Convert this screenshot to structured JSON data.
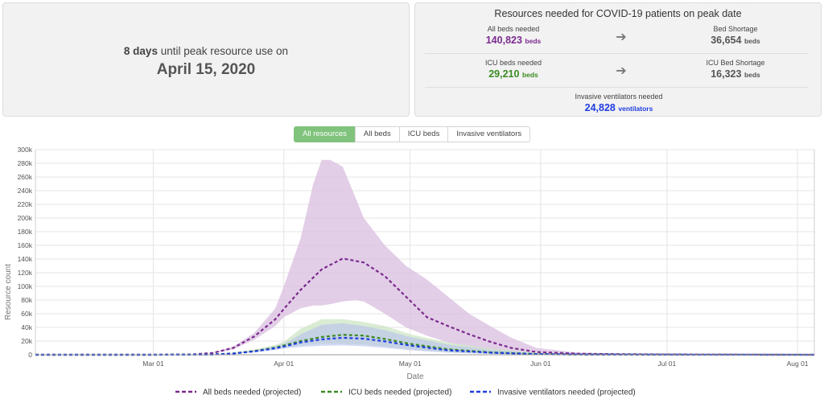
{
  "peak": {
    "days": "8 days",
    "until_text": " until peak resource use on",
    "date": "April 15, 2020"
  },
  "resources": {
    "title": "Resources needed for COVID-19 patients on peak date",
    "all_beds_label": "All beds needed",
    "all_beds_value": "140,823",
    "beds_unit": "beds",
    "bed_shortage_label": "Bed Shortage",
    "bed_shortage_value": "36,654",
    "icu_beds_label": "ICU beds needed",
    "icu_beds_value": "29,210",
    "icu_shortage_label": "ICU Bed Shortage",
    "icu_shortage_value": "16,323",
    "ventilators_label": "Invasive ventilators needed",
    "ventilators_value": "24,828",
    "ventilators_unit": "ventilators",
    "arrow_icon": "arrow-right-icon"
  },
  "filters": [
    "All resources",
    "All beds",
    "ICU beds",
    "Invasive ventilators"
  ],
  "active_filter": "All resources",
  "colors": {
    "all_beds": "#7b2a8e",
    "icu_beds": "#3b8a22",
    "ventilators": "#1f3de0",
    "all_beds_band": "#d9bde0",
    "icu_band": "#cfe6c5",
    "vent_band": "#b6c1ec",
    "active_filter": "#7fc37c"
  },
  "chart_data": {
    "type": "line",
    "xlabel": "Date",
    "ylabel": "Resource count",
    "x_ticks": [
      "Mar 01",
      "Apr 01",
      "May 01",
      "Jun 01",
      "Jul 01",
      "Aug 01"
    ],
    "y_ticks": [
      "0",
      "20k",
      "40k",
      "60k",
      "80k",
      "100k",
      "120k",
      "140k",
      "160k",
      "180k",
      "200k",
      "220k",
      "240k",
      "260k",
      "280k",
      "300k"
    ],
    "ylim": [
      0,
      300000
    ],
    "xlim": [
      "2020-02-02",
      "2020-08-05"
    ],
    "grid": true,
    "legend_position": "bottom",
    "series": [
      {
        "name": "All beds needed (projected)",
        "color": "#7b2a8e",
        "x": [
          "2020-02-02",
          "2020-03-01",
          "2020-03-10",
          "2020-03-15",
          "2020-03-20",
          "2020-03-25",
          "2020-03-30",
          "2020-04-01",
          "2020-04-05",
          "2020-04-10",
          "2020-04-15",
          "2020-04-20",
          "2020-04-25",
          "2020-04-30",
          "2020-05-05",
          "2020-05-10",
          "2020-05-15",
          "2020-05-20",
          "2020-05-25",
          "2020-05-31",
          "2020-06-10",
          "2020-06-20",
          "2020-07-01",
          "2020-08-05"
        ],
        "y": [
          0,
          0,
          500,
          2500,
          10000,
          27000,
          52000,
          67000,
          95000,
          125000,
          140823,
          135000,
          115000,
          85000,
          55000,
          42000,
          30000,
          19000,
          10000,
          4000,
          1500,
          800,
          500,
          0
        ]
      },
      {
        "name": "ICU beds needed (projected)",
        "color": "#3b8a22",
        "x": [
          "2020-02-02",
          "2020-03-01",
          "2020-03-15",
          "2020-03-20",
          "2020-03-25",
          "2020-03-30",
          "2020-04-01",
          "2020-04-05",
          "2020-04-10",
          "2020-04-15",
          "2020-04-20",
          "2020-04-25",
          "2020-05-01",
          "2020-05-10",
          "2020-05-20",
          "2020-05-31",
          "2020-06-10",
          "2020-07-01",
          "2020-08-05"
        ],
        "y": [
          0,
          0,
          500,
          2000,
          5500,
          10500,
          13500,
          20000,
          26000,
          29210,
          28000,
          23000,
          16000,
          8000,
          3500,
          1000,
          400,
          100,
          0
        ]
      },
      {
        "name": "Invasive ventilators needed (projected)",
        "color": "#1f3de0",
        "x": [
          "2020-02-02",
          "2020-03-01",
          "2020-03-15",
          "2020-03-20",
          "2020-03-25",
          "2020-03-30",
          "2020-04-01",
          "2020-04-05",
          "2020-04-10",
          "2020-04-15",
          "2020-04-20",
          "2020-04-25",
          "2020-05-01",
          "2020-05-10",
          "2020-05-20",
          "2020-05-31",
          "2020-06-10",
          "2020-07-01",
          "2020-08-05"
        ],
        "y": [
          0,
          0,
          400,
          1800,
          5000,
          9500,
          12000,
          18000,
          22500,
          24828,
          23500,
          19500,
          13500,
          6500,
          3000,
          800,
          300,
          100,
          0
        ]
      }
    ],
    "bands": [
      {
        "series": "All beds needed (projected)",
        "x": [
          "2020-02-02",
          "2020-03-01",
          "2020-03-10",
          "2020-03-15",
          "2020-03-20",
          "2020-03-25",
          "2020-03-30",
          "2020-04-01",
          "2020-04-05",
          "2020-04-08",
          "2020-04-10",
          "2020-04-12",
          "2020-04-15",
          "2020-04-18",
          "2020-04-20",
          "2020-04-25",
          "2020-04-30",
          "2020-05-05",
          "2020-05-10",
          "2020-05-15",
          "2020-05-20",
          "2020-05-25",
          "2020-05-31",
          "2020-06-10",
          "2020-06-20",
          "2020-07-01",
          "2020-08-05"
        ],
        "upper": [
          0,
          0,
          600,
          3000,
          12000,
          32000,
          68000,
          100000,
          170000,
          250000,
          285000,
          285000,
          275000,
          230000,
          200000,
          160000,
          130000,
          110000,
          85000,
          60000,
          42000,
          25000,
          10000,
          3000,
          1500,
          800,
          0
        ],
        "lower": [
          0,
          0,
          400,
          2000,
          8000,
          22000,
          42000,
          55000,
          68000,
          72000,
          72000,
          74000,
          78000,
          80000,
          78000,
          60000,
          40000,
          28000,
          18000,
          11000,
          6000,
          3000,
          1500,
          500,
          300,
          100,
          0
        ]
      },
      {
        "series": "ICU beds needed (projected)",
        "x": [
          "2020-02-02",
          "2020-03-01",
          "2020-03-15",
          "2020-03-20",
          "2020-03-25",
          "2020-03-30",
          "2020-04-01",
          "2020-04-05",
          "2020-04-10",
          "2020-04-15",
          "2020-04-20",
          "2020-04-25",
          "2020-05-01",
          "2020-05-10",
          "2020-05-20",
          "2020-05-31",
          "2020-06-10",
          "2020-07-01",
          "2020-08-05"
        ],
        "upper": [
          0,
          0,
          700,
          2500,
          7500,
          14500,
          19000,
          38000,
          52000,
          52000,
          48000,
          42000,
          30000,
          18000,
          9000,
          3000,
          800,
          200,
          0
        ],
        "lower": [
          0,
          0,
          300,
          1500,
          4000,
          8000,
          10500,
          14000,
          16000,
          16000,
          15000,
          12000,
          8000,
          3500,
          1500,
          400,
          100,
          0,
          0
        ]
      },
      {
        "series": "Invasive ventilators needed (projected)",
        "x": [
          "2020-02-02",
          "2020-03-01",
          "2020-03-15",
          "2020-03-20",
          "2020-03-25",
          "2020-03-30",
          "2020-04-01",
          "2020-04-05",
          "2020-04-10",
          "2020-04-15",
          "2020-04-20",
          "2020-04-25",
          "2020-05-01",
          "2020-05-10",
          "2020-05-20",
          "2020-05-31",
          "2020-06-10",
          "2020-07-01",
          "2020-08-05"
        ],
        "upper": [
          0,
          0,
          600,
          2200,
          6500,
          12500,
          16000,
          30000,
          44000,
          46000,
          42000,
          36000,
          26000,
          15000,
          7000,
          2500,
          700,
          150,
          0
        ],
        "lower": [
          0,
          0,
          250,
          1200,
          3500,
          7000,
          9000,
          11500,
          13000,
          13500,
          12500,
          10000,
          6500,
          3000,
          1200,
          300,
          80,
          0,
          0
        ]
      }
    ]
  }
}
